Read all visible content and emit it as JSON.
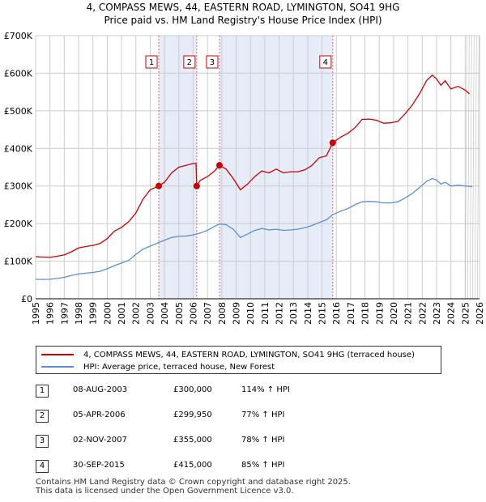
{
  "title_line1": "4, COMPASS MEWS, 44, EASTERN ROAD, LYMINGTON, SO41 9HG",
  "title_line2": "Price paid vs. HM Land Registry's House Price Index (HPI)",
  "chart_data": {
    "type": "line",
    "xlim": [
      1995,
      2026
    ],
    "ylim": [
      0,
      700000
    ],
    "x_ticks": [
      "1995",
      "1996",
      "1997",
      "1998",
      "1999",
      "2000",
      "2001",
      "2002",
      "2003",
      "2004",
      "2005",
      "2006",
      "2007",
      "2008",
      "2009",
      "2010",
      "2011",
      "2012",
      "2013",
      "2014",
      "2015",
      "2016",
      "2017",
      "2018",
      "2019",
      "2020",
      "2021",
      "2022",
      "2023",
      "2024",
      "2025",
      "2026"
    ],
    "y_ticks": [
      {
        "value": 0,
        "label": "£0"
      },
      {
        "value": 100000,
        "label": "£100K"
      },
      {
        "value": 200000,
        "label": "£200K"
      },
      {
        "value": 300000,
        "label": "£300K"
      },
      {
        "value": 400000,
        "label": "£400K"
      },
      {
        "value": 500000,
        "label": "£500K"
      },
      {
        "value": 600000,
        "label": "£600K"
      },
      {
        "value": 700000,
        "label": "£700K"
      }
    ],
    "grid": true,
    "shaded_spans": [
      [
        2003.6,
        2006.25
      ],
      [
        2007.84,
        2015.75
      ]
    ],
    "forecast_start": 2025.0,
    "series": [
      {
        "name": "4, COMPASS MEWS, 44, EASTERN ROAD, LYMINGTON, SO41 9HG (terraced house)",
        "color": "#cc0000",
        "points": [
          [
            1995.0,
            112000
          ],
          [
            1995.5,
            111000
          ],
          [
            1996.0,
            110000
          ],
          [
            1996.5,
            113000
          ],
          [
            1997.0,
            117000
          ],
          [
            1997.5,
            125000
          ],
          [
            1998.0,
            135000
          ],
          [
            1998.5,
            139000
          ],
          [
            1999.0,
            142000
          ],
          [
            1999.5,
            147000
          ],
          [
            2000.0,
            160000
          ],
          [
            2000.5,
            180000
          ],
          [
            2001.0,
            190000
          ],
          [
            2001.5,
            205000
          ],
          [
            2002.0,
            228000
          ],
          [
            2002.5,
            265000
          ],
          [
            2003.0,
            290000
          ],
          [
            2003.6,
            300000
          ],
          [
            2004.0,
            310000
          ],
          [
            2004.5,
            335000
          ],
          [
            2005.0,
            350000
          ],
          [
            2005.5,
            355000
          ],
          [
            2006.0,
            360000
          ],
          [
            2006.2,
            360000
          ],
          [
            2006.25,
            299950
          ],
          [
            2006.5,
            315000
          ],
          [
            2007.0,
            325000
          ],
          [
            2007.5,
            340000
          ],
          [
            2007.84,
            355000
          ],
          [
            2008.3,
            345000
          ],
          [
            2008.8,
            320000
          ],
          [
            2009.3,
            290000
          ],
          [
            2009.8,
            305000
          ],
          [
            2010.3,
            325000
          ],
          [
            2010.8,
            340000
          ],
          [
            2011.3,
            335000
          ],
          [
            2011.8,
            345000
          ],
          [
            2012.3,
            335000
          ],
          [
            2012.8,
            338000
          ],
          [
            2013.3,
            338000
          ],
          [
            2013.8,
            343000
          ],
          [
            2014.3,
            355000
          ],
          [
            2014.8,
            375000
          ],
          [
            2015.3,
            380000
          ],
          [
            2015.75,
            415000
          ],
          [
            2016.3,
            430000
          ],
          [
            2016.8,
            440000
          ],
          [
            2017.3,
            455000
          ],
          [
            2017.8,
            477000
          ],
          [
            2018.3,
            478000
          ],
          [
            2018.8,
            475000
          ],
          [
            2019.3,
            467000
          ],
          [
            2019.8,
            468000
          ],
          [
            2020.3,
            472000
          ],
          [
            2020.8,
            492000
          ],
          [
            2021.3,
            515000
          ],
          [
            2021.8,
            545000
          ],
          [
            2022.3,
            580000
          ],
          [
            2022.7,
            595000
          ],
          [
            2023.0,
            585000
          ],
          [
            2023.3,
            568000
          ],
          [
            2023.6,
            580000
          ],
          [
            2024.0,
            558000
          ],
          [
            2024.5,
            565000
          ],
          [
            2025.0,
            555000
          ],
          [
            2025.3,
            545000
          ]
        ]
      },
      {
        "name": "HPI: Average price, terraced house, New Forest",
        "color": "#5b8fcf",
        "points": [
          [
            1995.0,
            52000
          ],
          [
            1995.5,
            51500
          ],
          [
            1996.0,
            52000
          ],
          [
            1996.5,
            54000
          ],
          [
            1997.0,
            57000
          ],
          [
            1997.5,
            62000
          ],
          [
            1998.0,
            66000
          ],
          [
            1998.5,
            68000
          ],
          [
            1999.0,
            70000
          ],
          [
            1999.5,
            73000
          ],
          [
            2000.0,
            80000
          ],
          [
            2000.5,
            88000
          ],
          [
            2001.0,
            95000
          ],
          [
            2001.5,
            102000
          ],
          [
            2002.0,
            118000
          ],
          [
            2002.5,
            132000
          ],
          [
            2003.0,
            140000
          ],
          [
            2003.5,
            148000
          ],
          [
            2004.0,
            156000
          ],
          [
            2004.5,
            163000
          ],
          [
            2005.0,
            166000
          ],
          [
            2005.5,
            167000
          ],
          [
            2006.0,
            170000
          ],
          [
            2006.5,
            175000
          ],
          [
            2007.0,
            182000
          ],
          [
            2007.5,
            193000
          ],
          [
            2007.84,
            199000
          ],
          [
            2008.3,
            197000
          ],
          [
            2008.8,
            185000
          ],
          [
            2009.3,
            163000
          ],
          [
            2009.8,
            172000
          ],
          [
            2010.3,
            182000
          ],
          [
            2010.8,
            187000
          ],
          [
            2011.3,
            183000
          ],
          [
            2011.8,
            185000
          ],
          [
            2012.3,
            182000
          ],
          [
            2012.8,
            183000
          ],
          [
            2013.3,
            185000
          ],
          [
            2013.8,
            189000
          ],
          [
            2014.3,
            195000
          ],
          [
            2014.8,
            203000
          ],
          [
            2015.3,
            210000
          ],
          [
            2015.75,
            224000
          ],
          [
            2016.3,
            233000
          ],
          [
            2016.8,
            240000
          ],
          [
            2017.3,
            250000
          ],
          [
            2017.8,
            258000
          ],
          [
            2018.3,
            259000
          ],
          [
            2018.8,
            258000
          ],
          [
            2019.3,
            255000
          ],
          [
            2019.8,
            255000
          ],
          [
            2020.3,
            258000
          ],
          [
            2020.8,
            268000
          ],
          [
            2021.3,
            280000
          ],
          [
            2021.8,
            296000
          ],
          [
            2022.3,
            312000
          ],
          [
            2022.7,
            320000
          ],
          [
            2023.0,
            316000
          ],
          [
            2023.3,
            305000
          ],
          [
            2023.6,
            310000
          ],
          [
            2024.0,
            300000
          ],
          [
            2024.5,
            302000
          ],
          [
            2025.0,
            300000
          ],
          [
            2025.5,
            298000
          ]
        ]
      }
    ],
    "markers": [
      {
        "label": "1",
        "x": 2003.6,
        "y": 300000
      },
      {
        "label": "2",
        "x": 2006.25,
        "y": 299950
      },
      {
        "label": "3",
        "x": 2007.84,
        "y": 355000
      },
      {
        "label": "4",
        "x": 2015.75,
        "y": 415000
      }
    ]
  },
  "legend": {
    "items": [
      {
        "label": "4, COMPASS MEWS, 44, EASTERN ROAD, LYMINGTON, SO41 9HG (terraced house)",
        "color": "#cc0000"
      },
      {
        "label": "HPI: Average price, terraced house, New Forest",
        "color": "#5b8fcf"
      }
    ]
  },
  "sales": [
    {
      "num": "1",
      "date": "08-AUG-2003",
      "price": "£300,000",
      "hpi": "114% ↑ HPI"
    },
    {
      "num": "2",
      "date": "05-APR-2006",
      "price": "£299,950",
      "hpi": "77% ↑ HPI"
    },
    {
      "num": "3",
      "date": "02-NOV-2007",
      "price": "£355,000",
      "hpi": "78% ↑ HPI"
    },
    {
      "num": "4",
      "date": "30-SEP-2015",
      "price": "£415,000",
      "hpi": "85% ↑ HPI"
    }
  ],
  "footer": {
    "line1": "Contains HM Land Registry data © Crown copyright and database right 2025.",
    "line2": "This data is licensed under the Open Government Licence v3.0."
  }
}
